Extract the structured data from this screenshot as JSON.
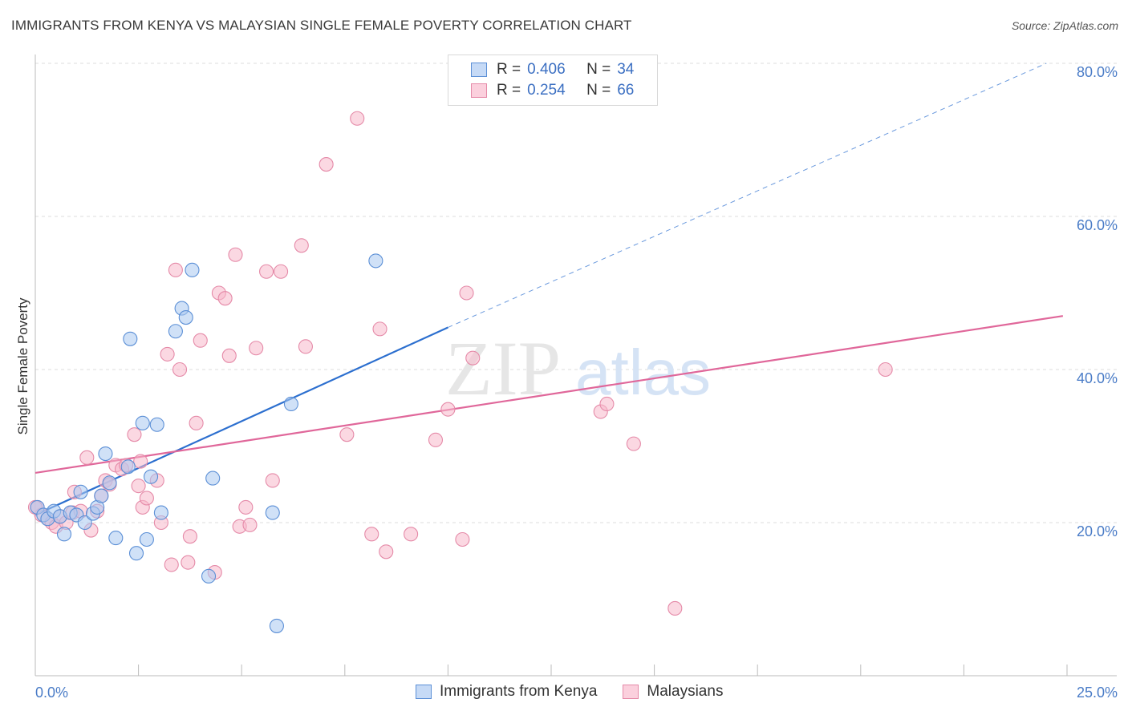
{
  "title": "IMMIGRANTS FROM KENYA VS MALAYSIAN SINGLE FEMALE POVERTY CORRELATION CHART",
  "source": "Source: ZipAtlas.com",
  "watermark": {
    "zip": "ZIP",
    "atlas": "atlas"
  },
  "legend": {
    "r_label": "R =",
    "n_label": "N =",
    "rows": [
      {
        "r": "0.406",
        "n": "34"
      },
      {
        "r": "0.254",
        "n": "66"
      }
    ]
  },
  "colors": {
    "kenya_fill": "#a9c8f0",
    "kenya_stroke": "#5b8fd6",
    "kenya_line": "#2c6fcf",
    "malaysian_fill": "#f7b8cb",
    "malaysian_stroke": "#e58aa8",
    "malaysian_line": "#e0679a",
    "tick": "#4a7cc7",
    "grid": "#dddddd"
  },
  "chart_data": {
    "type": "scatter",
    "xlabel": "",
    "ylabel": "Single Female Poverty",
    "xlim": [
      0,
      25
    ],
    "ylim": [
      0,
      82
    ],
    "x_tick_labels": [
      "0.0%",
      "25.0%"
    ],
    "y_ticks": [
      20,
      40,
      60,
      80
    ],
    "y_tick_labels": [
      "20.0%",
      "40.0%",
      "60.0%",
      "80.0%"
    ],
    "grid": true,
    "legend_position": "top-center",
    "series": [
      {
        "name": "Immigrants from Kenya",
        "r": 0.406,
        "n": 34,
        "trend": {
          "x0": 0,
          "y0": 21.0,
          "x1": 10.0,
          "y1": 45.5,
          "dashed_to_x": 24.5,
          "dashed_to_y": 80.0
        },
        "points": [
          [
            0.05,
            22.0
          ],
          [
            0.2,
            21.0
          ],
          [
            0.3,
            20.5
          ],
          [
            0.45,
            21.5
          ],
          [
            0.6,
            20.8
          ],
          [
            0.7,
            18.5
          ],
          [
            0.85,
            21.3
          ],
          [
            1.0,
            21.0
          ],
          [
            1.1,
            24.0
          ],
          [
            1.2,
            20.0
          ],
          [
            1.4,
            21.2
          ],
          [
            1.5,
            22.0
          ],
          [
            1.6,
            23.5
          ],
          [
            1.7,
            29.0
          ],
          [
            1.8,
            25.2
          ],
          [
            1.95,
            18.0
          ],
          [
            2.25,
            27.3
          ],
          [
            2.3,
            44.0
          ],
          [
            2.45,
            16.0
          ],
          [
            2.6,
            33.0
          ],
          [
            2.7,
            17.8
          ],
          [
            2.8,
            26.0
          ],
          [
            2.95,
            32.8
          ],
          [
            3.05,
            21.3
          ],
          [
            3.4,
            45.0
          ],
          [
            3.55,
            48.0
          ],
          [
            3.65,
            46.8
          ],
          [
            3.8,
            53.0
          ],
          [
            4.2,
            13.0
          ],
          [
            4.3,
            25.8
          ],
          [
            5.75,
            21.3
          ],
          [
            5.85,
            6.5
          ],
          [
            6.2,
            35.5
          ],
          [
            8.25,
            54.2
          ]
        ]
      },
      {
        "name": "Malaysians",
        "r": 0.254,
        "n": 66,
        "trend": {
          "x0": 0,
          "y0": 26.5,
          "x1": 24.9,
          "y1": 47.0
        },
        "points": [
          [
            0.05,
            22.0
          ],
          [
            0.15,
            21.0
          ],
          [
            0.3,
            20.5
          ],
          [
            0.4,
            20.0
          ],
          [
            0.5,
            19.5
          ],
          [
            0.6,
            20.8
          ],
          [
            0.75,
            20.0
          ],
          [
            0.9,
            21.3
          ],
          [
            0.95,
            24.0
          ],
          [
            1.1,
            21.5
          ],
          [
            1.25,
            28.5
          ],
          [
            1.35,
            19.0
          ],
          [
            1.5,
            21.5
          ],
          [
            1.6,
            23.5
          ],
          [
            1.7,
            25.5
          ],
          [
            1.8,
            25.0
          ],
          [
            1.95,
            27.5
          ],
          [
            2.1,
            27.0
          ],
          [
            2.2,
            27.5
          ],
          [
            2.4,
            31.5
          ],
          [
            2.5,
            24.8
          ],
          [
            2.55,
            28.0
          ],
          [
            2.6,
            22.0
          ],
          [
            2.7,
            23.2
          ],
          [
            2.95,
            25.5
          ],
          [
            3.05,
            20.0
          ],
          [
            3.2,
            42.0
          ],
          [
            3.3,
            14.5
          ],
          [
            3.4,
            53.0
          ],
          [
            3.5,
            40.0
          ],
          [
            3.7,
            14.8
          ],
          [
            3.75,
            18.2
          ],
          [
            3.9,
            33.0
          ],
          [
            4.0,
            43.8
          ],
          [
            4.35,
            13.5
          ],
          [
            4.45,
            50.0
          ],
          [
            4.6,
            49.3
          ],
          [
            4.7,
            41.8
          ],
          [
            4.85,
            55.0
          ],
          [
            4.95,
            19.5
          ],
          [
            5.1,
            22.0
          ],
          [
            5.2,
            19.7
          ],
          [
            5.35,
            42.8
          ],
          [
            5.6,
            52.8
          ],
          [
            5.75,
            25.5
          ],
          [
            5.95,
            52.8
          ],
          [
            6.45,
            56.2
          ],
          [
            6.55,
            43.0
          ],
          [
            7.05,
            66.8
          ],
          [
            7.55,
            31.5
          ],
          [
            7.8,
            72.8
          ],
          [
            8.15,
            18.5
          ],
          [
            8.35,
            45.3
          ],
          [
            8.5,
            16.2
          ],
          [
            9.1,
            18.5
          ],
          [
            9.7,
            30.8
          ],
          [
            10.0,
            34.8
          ],
          [
            10.35,
            17.8
          ],
          [
            10.45,
            50.0
          ],
          [
            10.6,
            41.5
          ],
          [
            13.7,
            34.5
          ],
          [
            13.85,
            35.5
          ],
          [
            14.5,
            30.3
          ],
          [
            15.5,
            8.8
          ],
          [
            20.6,
            40.0
          ],
          [
            0.0,
            22.0
          ]
        ]
      }
    ]
  }
}
